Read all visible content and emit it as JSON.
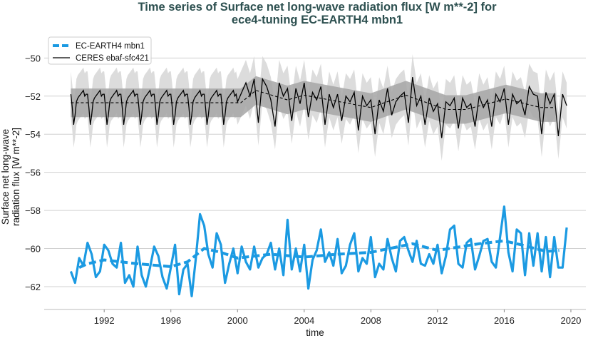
{
  "chart_data": {
    "type": "line",
    "title_lines": [
      "Time series of Surface net long-wave radiation flux [W m**-2] for",
      "ece4-tuning EC-EARTH4 mbn1"
    ],
    "xlabel": "time",
    "ylabel_lines": [
      "Surface net long-wave",
      "radiation flux [W m**-2]"
    ],
    "xlim": [
      1988.4,
      2020.9
    ],
    "ylim": [
      -63.2,
      -49.2
    ],
    "x_ticks": [
      1992,
      1996,
      2000,
      2004,
      2008,
      2012,
      2016,
      2020
    ],
    "x_tick_labels": [
      "1992",
      "1996",
      "2000",
      "2004",
      "2008",
      "2012",
      "2016",
      "2020"
    ],
    "y_ticks": [
      -50,
      -52,
      -54,
      -56,
      -58,
      -60,
      -62
    ],
    "y_tick_labels": [
      "−50",
      "−52",
      "−54",
      "−56",
      "−58",
      "−60",
      "−62"
    ],
    "grid": true,
    "legend_position": "top-left",
    "legend": [
      "EC-EARTH4 mbn1",
      "CERES ebaf-sfc421"
    ],
    "colors": {
      "model": "#1b9ae2",
      "obs": "#000000",
      "obs_std_band": "#a6a6a6",
      "obs_range_band": "#dcdcdc",
      "title": "#2d5050"
    },
    "series": [
      {
        "name": "EC-EARTH4 mbn1",
        "x_start": 1990.0,
        "x_step": 0.25,
        "values": [
          -61.2,
          -61.8,
          -60.5,
          -60.9,
          -59.7,
          -60.3,
          -61.5,
          -61.2,
          -59.8,
          -60.1,
          -60.8,
          -61.0,
          -59.7,
          -61.8,
          -61.4,
          -62.0,
          -59.9,
          -61.4,
          -62.0,
          -61.0,
          -59.9,
          -60.4,
          -61.5,
          -62.1,
          -61.0,
          -59.8,
          -62.4,
          -61.1,
          -60.8,
          -62.5,
          -60.5,
          -58.2,
          -58.8,
          -60.3,
          -61.0,
          -59.2,
          -59.8,
          -61.8,
          -60.8,
          -60.0,
          -61.3,
          -59.9,
          -60.7,
          -61.1,
          -59.9,
          -61.0,
          -60.5,
          -60.3,
          -59.7,
          -61.1,
          -60.0,
          -61.4,
          -58.5,
          -61.1,
          -60.0,
          -61.2,
          -59.8,
          -62.1,
          -60.6,
          -60.1,
          -59.0,
          -60.7,
          -60.2,
          -60.9,
          -59.5,
          -61.3,
          -60.9,
          -59.8,
          -59.2,
          -61.2,
          -60.5,
          -60.8,
          -59.4,
          -61.5,
          -60.8,
          -61.1,
          -59.5,
          -60.5,
          -61.2,
          -59.6,
          -59.4,
          -60.1,
          -60.7,
          -59.6,
          -60.8,
          -60.9,
          -60.3,
          -60.8,
          -59.8,
          -61.3,
          -60.4,
          -59.0,
          -58.8,
          -60.8,
          -61.0,
          -59.7,
          -59.5,
          -61.1,
          -60.4,
          -59.6,
          -59.5,
          -60.7,
          -61.0,
          -59.4,
          -57.8,
          -60.2,
          -61.2,
          -59.0,
          -59.2,
          -61.4,
          -59.2,
          -60.9,
          -59.2,
          -61.2,
          -59.4,
          -61.5,
          -59.4,
          -61.0,
          -61.0,
          -58.9
        ],
        "running_mean": {
          "x": [
            1990.5,
            1991,
            1992,
            1994,
            1996,
            1997,
            1998,
            1999,
            2000,
            2002,
            2004,
            2006,
            2008,
            2010.5,
            2012,
            2014.5,
            2016,
            2017,
            2018.5,
            2019.3
          ],
          "y": [
            -61.0,
            -60.8,
            -60.6,
            -60.8,
            -60.95,
            -60.7,
            -60.0,
            -60.2,
            -60.5,
            -60.3,
            -60.45,
            -60.3,
            -60.2,
            -59.75,
            -60.1,
            -59.75,
            -59.6,
            -59.8,
            -60.15,
            -60.1
          ]
        }
      },
      {
        "name": "CERES ebaf-sfc421",
        "climatology_monthly_1990_1999": [
          -51.9,
          -52.6,
          -53.5,
          -53.0,
          -52.3,
          -52.1,
          -52.0,
          -51.9,
          -51.8,
          -51.7,
          -52.0,
          -51.9
        ],
        "x_start": 2000.0,
        "x_step": 0.25,
        "values": [
          -52.3,
          -51.8,
          -51.3,
          -52.0,
          -51.1,
          -53.4,
          -51.1,
          -51.5,
          -52.2,
          -53.6,
          -51.3,
          -52.0,
          -51.6,
          -53.3,
          -51.6,
          -52.4,
          -51.3,
          -53.1,
          -51.8,
          -52.2,
          -51.5,
          -53.5,
          -51.9,
          -52.6,
          -51.9,
          -53.3,
          -52.0,
          -52.3,
          -51.8,
          -53.8,
          -52.0,
          -52.5,
          -52.2,
          -54.0,
          -52.2,
          -52.8,
          -51.6,
          -53.0,
          -52.3,
          -52.0,
          -51.8,
          -53.4,
          -51.0,
          -52.5,
          -52.0,
          -53.5,
          -52.1,
          -52.8,
          -52.4,
          -54.2,
          -52.3,
          -52.5,
          -52.1,
          -53.7,
          -52.1,
          -52.6,
          -52.4,
          -53.6,
          -52.0,
          -52.6,
          -52.2,
          -53.6,
          -51.9,
          -52.3,
          -51.6,
          -53.5,
          -51.9,
          -52.4,
          -52.2,
          -53.0,
          -51.5,
          -51.9,
          -52.0,
          -54.0,
          -51.8,
          -52.4,
          -51.9,
          -54.1,
          -51.9,
          -52.5
        ],
        "running_mean": {
          "x": [
            1990.0,
            2000.2,
            2001.1,
            2003.0,
            2004.0,
            2008.0,
            2010.1,
            2012.5,
            2013.7,
            2016.1,
            2018.2,
            2019.1
          ],
          "y": [
            -52.35,
            -52.35,
            -51.7,
            -52.2,
            -51.95,
            -52.6,
            -51.95,
            -52.7,
            -52.7,
            -52.15,
            -52.6,
            -52.6
          ]
        },
        "std_band_halfwidth": 0.75,
        "range_band_halfwidth": 1.2
      }
    ]
  }
}
